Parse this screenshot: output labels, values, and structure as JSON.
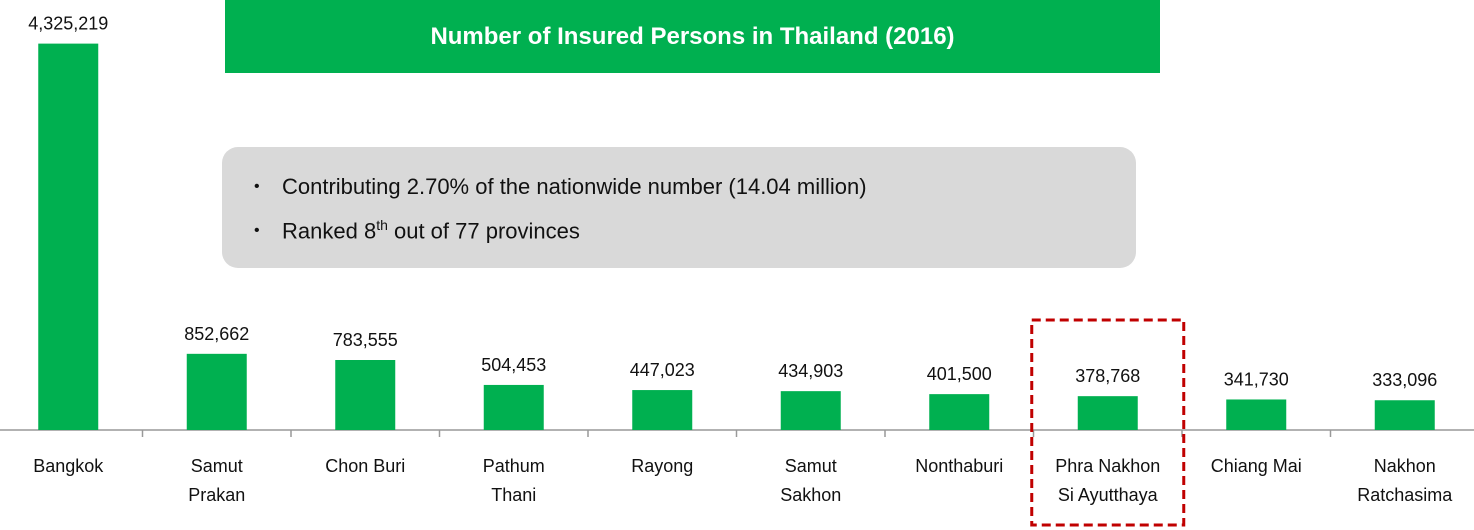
{
  "chart_data": {
    "type": "bar",
    "title": "Number of Insured Persons in Thailand (2016)",
    "categories": [
      "Bangkok",
      "Samut Prakan",
      "Chon Buri",
      "Pathum Thani",
      "Rayong",
      "Samut Sakhon",
      "Nonthaburi",
      "Phra Nakhon Si Ayutthaya",
      "Chiang Mai",
      "Nakhon Ratchasima"
    ],
    "values": [
      4325219,
      852662,
      783555,
      504453,
      447023,
      434903,
      401500,
      378768,
      341730,
      333096
    ],
    "value_labels": [
      "4,325,219",
      "852,662",
      "783,555",
      "504,453",
      "447,023",
      "434,903",
      "401,500",
      "378,768",
      "341,730",
      "333,096"
    ],
    "color": "#00b050",
    "ylim": [
      0,
      4500000
    ],
    "highlight": 7,
    "annotations": [
      "Contributing 2.70% of the nationwide number (14.04 million)",
      {
        "text": "Ranked 8",
        "sup": "th",
        "rest": " out of 77 provinces"
      }
    ]
  }
}
